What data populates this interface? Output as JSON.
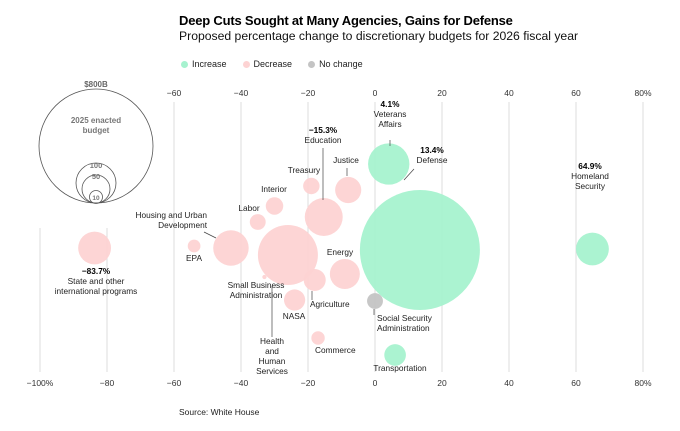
{
  "title": "Deep Cuts Sought at Many Agencies, Gains for Defense",
  "subtitle": "Proposed percentage change to discretionary budgets for 2026 fiscal year",
  "legend": [
    {
      "label": "Increase",
      "color": "#a6f2cf"
    },
    {
      "label": "Decrease",
      "color": "#fdd3d3"
    },
    {
      "label": "No change",
      "color": "#c4c4c4"
    }
  ],
  "source": "Source: White House",
  "size_key": {
    "title": "2025 enacted budget",
    "labels": [
      "$800B",
      "100",
      "50",
      "10"
    ]
  },
  "chart_data": {
    "type": "scatter",
    "x_axis": {
      "min": -100,
      "max": 80,
      "top_ticks": [
        "−60",
        "−40",
        "−20",
        "0",
        "20",
        "40",
        "60",
        "80%"
      ],
      "bottom_ticks": [
        "−100%",
        "−80",
        "−60",
        "−40",
        "−20",
        "0",
        "20",
        "40",
        "60",
        "80%"
      ],
      "tick_values": [
        -100,
        -80,
        -60,
        -40,
        -20,
        0,
        20,
        40,
        60,
        80
      ]
    },
    "bubble_size_measure": "2025 enacted budget ($B)",
    "points": [
      {
        "name": "Defense",
        "value_label": "13.4%",
        "x": 13.4,
        "budget": 800,
        "status": "increase"
      },
      {
        "name": "Veterans Affairs",
        "value_label": "4.1%",
        "x": 4.1,
        "budget": 95,
        "status": "increase"
      },
      {
        "name": "Homeland Security",
        "value_label": "64.9%",
        "x": 64.9,
        "budget": 60,
        "status": "increase"
      },
      {
        "name": "Transportation",
        "value_label": "",
        "x": 6,
        "budget": 26,
        "status": "increase"
      },
      {
        "name": "State and other international programs",
        "value_label": "−83.7%",
        "x": -83.7,
        "budget": 60,
        "status": "decrease"
      },
      {
        "name": "Education",
        "value_label": "−15.3%",
        "x": -15.3,
        "budget": 80,
        "status": "decrease"
      },
      {
        "name": "Health and Human Services",
        "value_label": "",
        "x": -26,
        "budget": 200,
        "status": "decrease"
      },
      {
        "name": "Housing and Urban Development",
        "value_label": "",
        "x": -43,
        "budget": 70,
        "status": "decrease"
      },
      {
        "name": "Energy",
        "value_label": "",
        "x": -9,
        "budget": 50,
        "status": "decrease"
      },
      {
        "name": "Justice",
        "value_label": "",
        "x": -8,
        "budget": 38,
        "status": "decrease"
      },
      {
        "name": "Treasury",
        "value_label": "",
        "x": -19,
        "budget": 15,
        "status": "decrease"
      },
      {
        "name": "Interior",
        "value_label": "",
        "x": -30,
        "budget": 17,
        "status": "decrease"
      },
      {
        "name": "Labor",
        "value_label": "",
        "x": -35,
        "budget": 14,
        "status": "decrease"
      },
      {
        "name": "EPA",
        "value_label": "",
        "x": -54,
        "budget": 9,
        "status": "decrease"
      },
      {
        "name": "Small Business Administration",
        "value_label": "",
        "x": -33,
        "budget": 1,
        "status": "decrease"
      },
      {
        "name": "NASA",
        "value_label": "",
        "x": -24,
        "budget": 25,
        "status": "decrease"
      },
      {
        "name": "Agriculture",
        "value_label": "",
        "x": -18,
        "budget": 27,
        "status": "decrease"
      },
      {
        "name": "Commerce",
        "value_label": "",
        "x": -17,
        "budget": 10,
        "status": "decrease"
      },
      {
        "name": "Social Security Administration",
        "value_label": "",
        "x": 0,
        "budget": 14,
        "status": "no change"
      }
    ],
    "colors": {
      "increase": "#a6f2cf",
      "decrease": "#fdd3d3",
      "no change": "#c4c4c4"
    }
  }
}
